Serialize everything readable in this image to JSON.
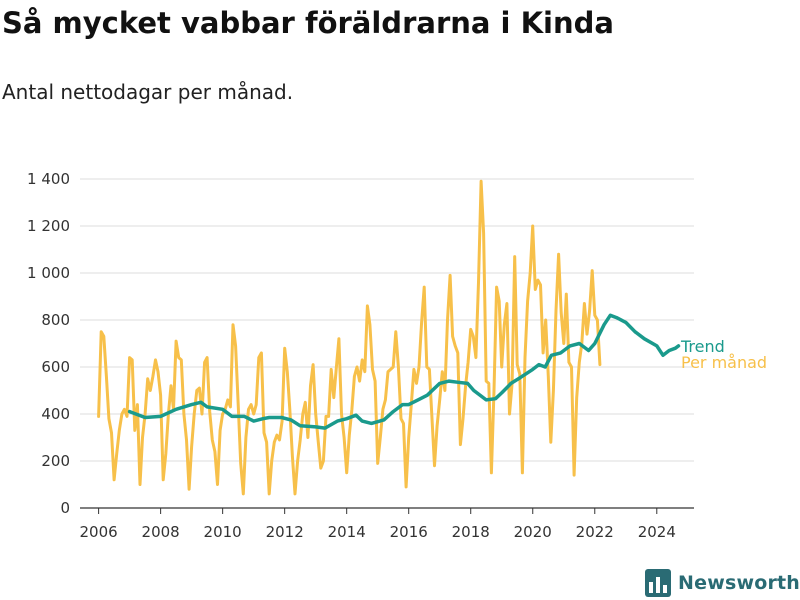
{
  "header": {
    "title": "Så mycket vabbar föräldrarna i Kinda",
    "subtitle": "Antal nettodagar per månad."
  },
  "brand": {
    "name": "Newsworthy",
    "icon": "bar-chart-logo-icon",
    "color": "#2a6b74"
  },
  "chart_data": {
    "type": "line",
    "x_axis": {
      "range": [
        2005.4,
        2025.2
      ],
      "ticks": [
        2006,
        2008,
        2010,
        2012,
        2014,
        2016,
        2018,
        2020,
        2022,
        2024
      ],
      "tick_labels": [
        "2006",
        "2008",
        "2010",
        "2012",
        "2014",
        "2016",
        "2018",
        "2020",
        "2022",
        "2024"
      ]
    },
    "y_axis": {
      "range": [
        0,
        1400
      ],
      "ticks": [
        0,
        200,
        400,
        600,
        800,
        1000,
        1200,
        1400
      ],
      "tick_labels": [
        "0",
        "200",
        "400",
        "600",
        "800",
        "1 000",
        "1 200",
        "1 400"
      ],
      "grid": true
    },
    "legend": "direct labels at line ends (right)",
    "series": [
      {
        "name": "Per månad",
        "color": "#f7c04a",
        "x_start": 2006.0,
        "x_step": 0.0833333,
        "values": [
          390,
          750,
          730,
          560,
          380,
          320,
          120,
          230,
          330,
          400,
          420,
          390,
          640,
          630,
          330,
          440,
          100,
          300,
          400,
          550,
          500,
          560,
          630,
          580,
          480,
          120,
          230,
          400,
          520,
          420,
          710,
          640,
          630,
          400,
          290,
          80,
          260,
          400,
          500,
          510,
          400,
          620,
          640,
          410,
          290,
          240,
          100,
          330,
          400,
          420,
          460,
          430,
          780,
          690,
          440,
          190,
          60,
          300,
          420,
          440,
          400,
          440,
          640,
          660,
          320,
          280,
          60,
          200,
          280,
          310,
          290,
          370,
          680,
          580,
          420,
          220,
          60,
          200,
          290,
          400,
          450,
          300,
          520,
          610,
          400,
          280,
          170,
          200,
          390,
          390,
          590,
          470,
          600,
          720,
          400,
          300,
          150,
          310,
          420,
          560,
          600,
          540,
          630,
          580,
          860,
          780,
          590,
          540,
          190,
          300,
          420,
          460,
          580,
          590,
          600,
          750,
          600,
          380,
          360,
          90,
          300,
          440,
          590,
          530,
          600,
          790,
          940,
          600,
          590,
          380,
          180,
          350,
          460,
          580,
          500,
          800,
          990,
          730,
          690,
          660,
          270,
          380,
          520,
          620,
          760,
          730,
          640,
          960,
          1390,
          1170,
          540,
          530,
          150,
          500,
          940,
          880,
          600,
          780,
          870,
          400,
          530,
          1070,
          610,
          570,
          150,
          640,
          880,
          1000,
          1200,
          930,
          970,
          950,
          660,
          800,
          560,
          280,
          500,
          840,
          1080,
          830,
          700,
          910,
          620,
          600,
          140,
          470,
          620,
          700,
          870,
          740,
          840,
          1010,
          820,
          800,
          610
        ]
      },
      {
        "name": "Trend",
        "color": "#1a9a8c",
        "points": [
          [
            2007.0,
            410
          ],
          [
            2007.5,
            385
          ],
          [
            2008.0,
            390
          ],
          [
            2008.5,
            420
          ],
          [
            2009.0,
            440
          ],
          [
            2009.3,
            450
          ],
          [
            2009.5,
            430
          ],
          [
            2010.0,
            420
          ],
          [
            2010.3,
            390
          ],
          [
            2010.7,
            390
          ],
          [
            2011.0,
            370
          ],
          [
            2011.3,
            380
          ],
          [
            2011.5,
            385
          ],
          [
            2011.9,
            385
          ],
          [
            2012.2,
            375
          ],
          [
            2012.5,
            350
          ],
          [
            2013.0,
            345
          ],
          [
            2013.3,
            340
          ],
          [
            2013.7,
            370
          ],
          [
            2014.0,
            380
          ],
          [
            2014.3,
            395
          ],
          [
            2014.5,
            370
          ],
          [
            2014.8,
            360
          ],
          [
            2015.2,
            375
          ],
          [
            2015.5,
            410
          ],
          [
            2015.8,
            440
          ],
          [
            2016.0,
            440
          ],
          [
            2016.3,
            460
          ],
          [
            2016.6,
            480
          ],
          [
            2017.0,
            530
          ],
          [
            2017.3,
            540
          ],
          [
            2017.6,
            535
          ],
          [
            2017.9,
            530
          ],
          [
            2018.1,
            500
          ],
          [
            2018.5,
            460
          ],
          [
            2018.8,
            465
          ],
          [
            2019.0,
            490
          ],
          [
            2019.3,
            530
          ],
          [
            2019.6,
            555
          ],
          [
            2020.0,
            590
          ],
          [
            2020.2,
            610
          ],
          [
            2020.4,
            600
          ],
          [
            2020.6,
            650
          ],
          [
            2020.9,
            660
          ],
          [
            2021.2,
            690
          ],
          [
            2021.5,
            700
          ],
          [
            2021.8,
            670
          ],
          [
            2022.0,
            700
          ],
          [
            2022.3,
            780
          ],
          [
            2022.5,
            820
          ],
          [
            2022.7,
            810
          ],
          [
            2023.0,
            790
          ],
          [
            2023.3,
            750
          ],
          [
            2023.6,
            720
          ],
          [
            2024.0,
            690
          ],
          [
            2024.2,
            650
          ],
          [
            2024.4,
            670
          ],
          [
            2024.6,
            680
          ],
          [
            2024.7,
            690
          ]
        ]
      }
    ]
  }
}
